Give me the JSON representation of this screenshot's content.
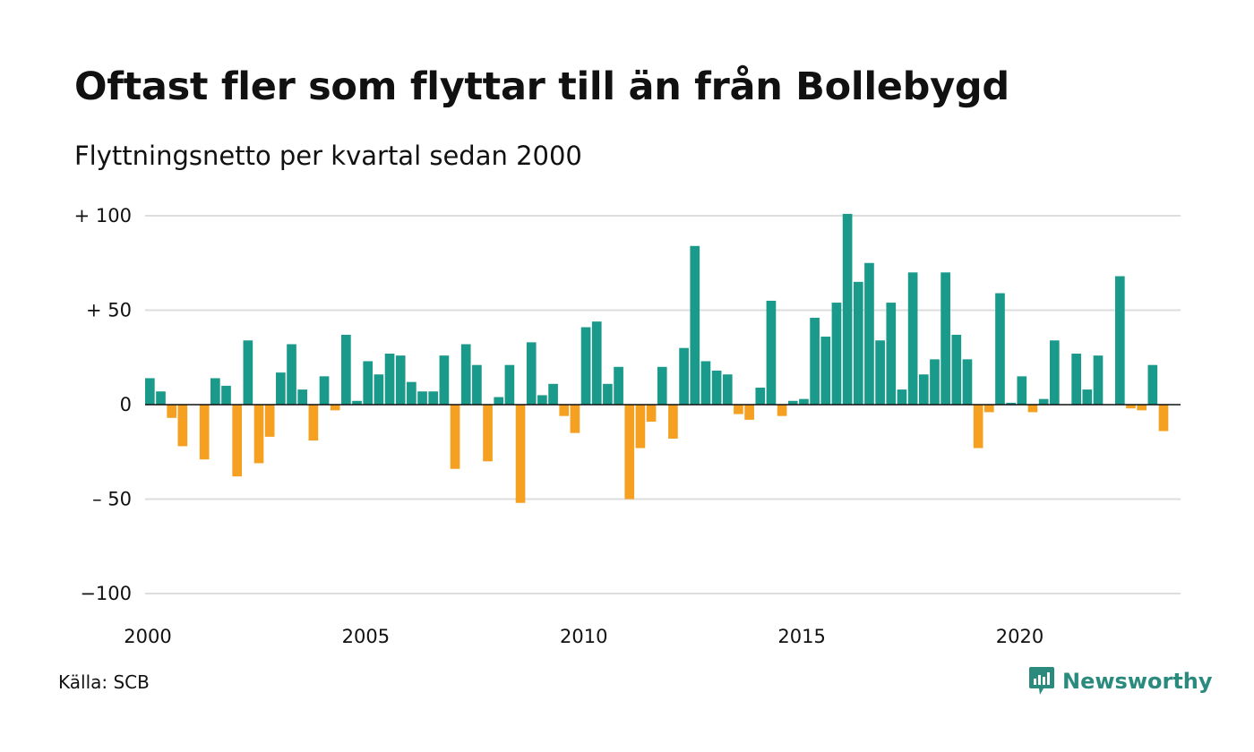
{
  "title": "Oftast fler som flyttar till än från Bollebygd",
  "subtitle": "Flyttningsnetto per kvartal sedan 2000",
  "source": "Källa: SCB",
  "brand": {
    "name": "Newsworthy",
    "icon": "newsworthy-logo-icon",
    "color": "#2a8a7e"
  },
  "colors": {
    "positive": "#1a9a8a",
    "negative": "#f5a020",
    "grid": "#dddddd",
    "zero": "#111111"
  },
  "chart_data": {
    "type": "bar",
    "title": "Oftast fler som flyttar till än från Bollebygd",
    "subtitle": "Flyttningsnetto per kvartal sedan 2000",
    "xlabel": "",
    "ylabel": "",
    "ylim": [
      -100,
      100
    ],
    "xlim": [
      2000,
      2023.75
    ],
    "grid": true,
    "legend": "none",
    "y_ticks": [
      {
        "value": 100,
        "label": "+ 100"
      },
      {
        "value": 50,
        "label": "+  50"
      },
      {
        "value": 0,
        "label": "0"
      },
      {
        "value": -50,
        "label": "– 50"
      },
      {
        "value": -100,
        "label": "−100"
      }
    ],
    "x_ticks": [
      {
        "value": 2000,
        "label": "2000"
      },
      {
        "value": 2005,
        "label": "2005"
      },
      {
        "value": 2010,
        "label": "2010"
      },
      {
        "value": 2015,
        "label": "2015"
      },
      {
        "value": 2020,
        "label": "2020"
      }
    ],
    "series": [
      {
        "start_year": 2000,
        "periods_per_year": 4,
        "values": [
          14,
          7,
          -7,
          -22,
          0,
          -29,
          14,
          10,
          -38,
          34,
          -31,
          -17,
          17,
          32,
          8,
          -19,
          15,
          -3,
          37,
          2,
          23,
          16,
          27,
          26,
          12,
          7,
          7,
          26,
          -34,
          32,
          21,
          -30,
          4,
          21,
          -52,
          33,
          5,
          11,
          -6,
          -15,
          41,
          44,
          11,
          20,
          -50,
          -23,
          -9,
          20,
          -18,
          30,
          84,
          23,
          18,
          16,
          -5,
          -8,
          9,
          55,
          -6,
          2,
          3,
          46,
          36,
          54,
          101,
          65,
          75,
          34,
          54,
          8,
          70,
          16,
          24,
          70,
          37,
          24,
          -23,
          -4,
          59,
          1,
          15,
          -4,
          3,
          34,
          0,
          27,
          8,
          26,
          0,
          68,
          -2,
          -3,
          21,
          -14
        ]
      }
    ]
  }
}
